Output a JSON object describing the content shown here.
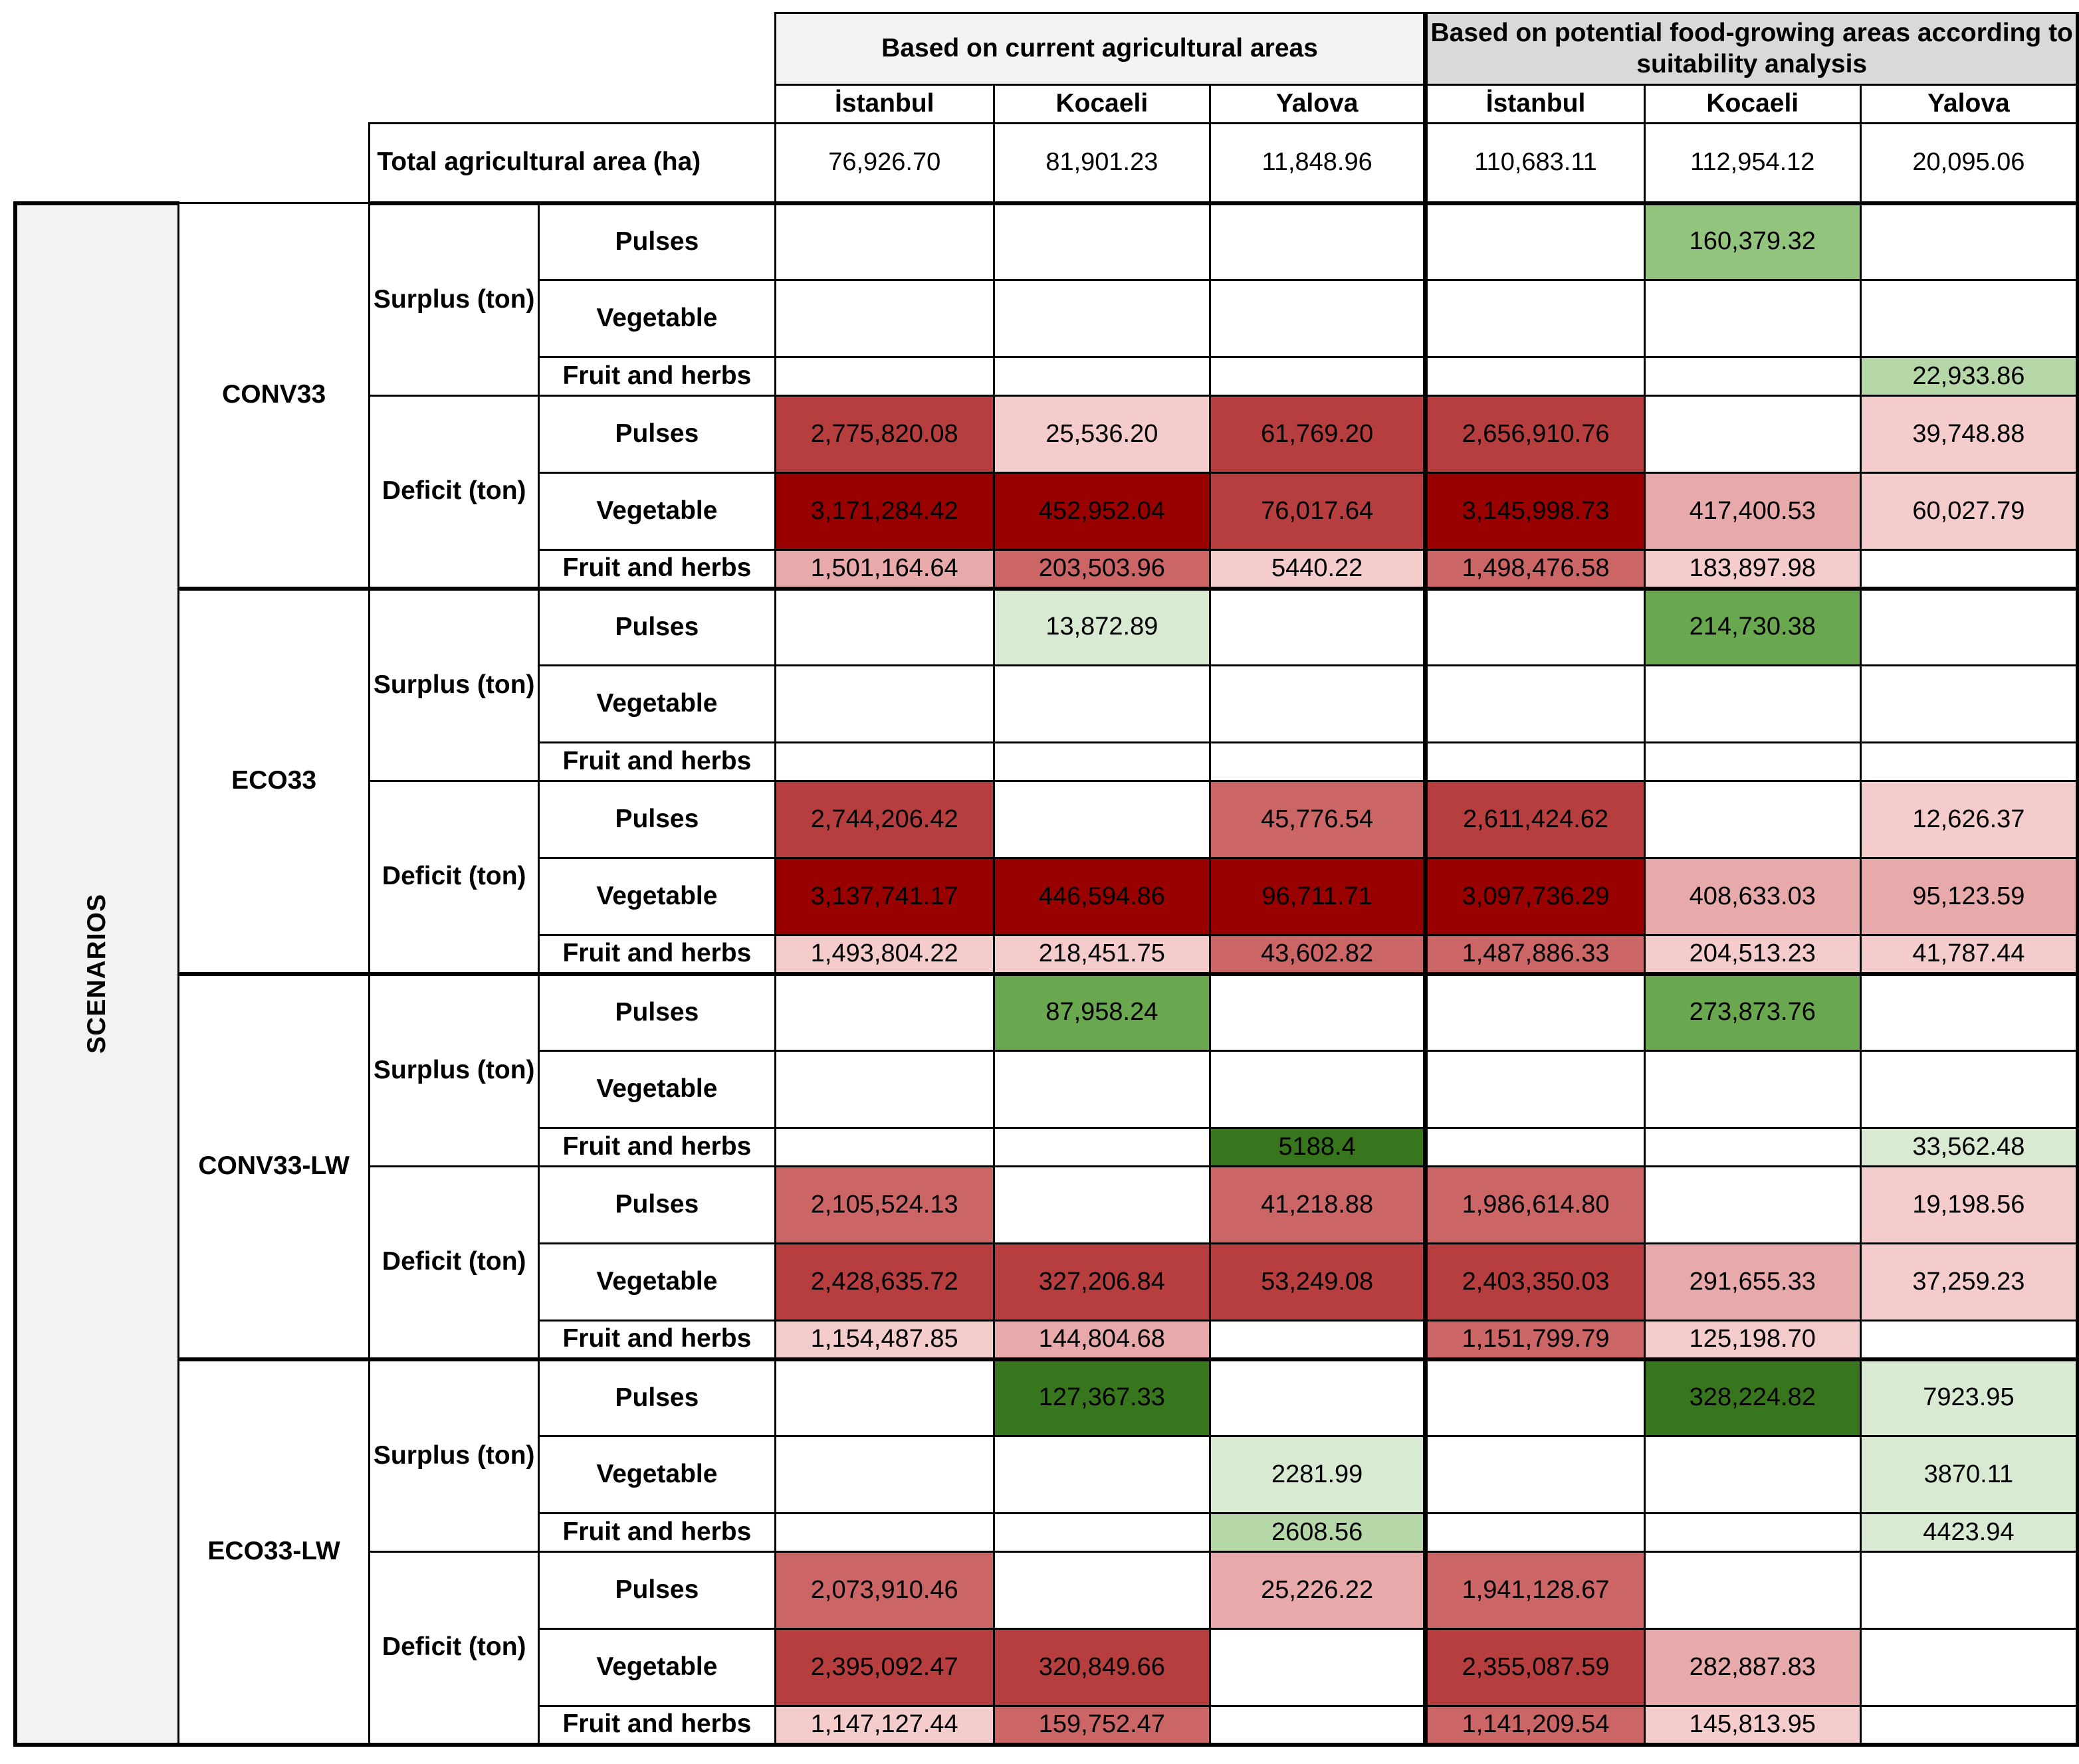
{
  "header": {
    "group_current": "Based on current agricultural areas",
    "group_potential": "Based on potential food-growing areas according to suitability analysis",
    "cities": [
      "İstanbul",
      "Kocaeli",
      "Yalova",
      "İstanbul",
      "Kocaeli",
      "Yalova"
    ]
  },
  "total_row": {
    "label": "Total agricultural area (ha)",
    "values": [
      "76,926.70",
      "81,901.23",
      "11,848.96",
      "110,683.11",
      "112,954.12",
      "20,095.06"
    ]
  },
  "side_label": "SCENARIOS",
  "colors": {
    "deficit_darkest": "#990000",
    "deficit_dark": "#b73e3e",
    "deficit_mid": "#cc6666",
    "deficit_light": "#e7a9a9",
    "deficit_lightest": "#f4cccc",
    "surplus_darkest": "#38761d",
    "surplus_dark": "#6aa84f",
    "surplus_mid": "#93c47d",
    "surplus_light": "#b6d7a8",
    "surplus_lightest": "#d9ead3"
  },
  "scenarios": [
    {
      "name": "CONV33",
      "groups": [
        {
          "label": "Surplus (ton)",
          "rows": [
            {
              "item": "Pulses",
              "values": [
                "",
                "",
                "",
                "",
                "160,379.32",
                ""
              ],
              "shades": [
                "",
                "",
                "",
                "",
                "surplus_mid",
                ""
              ]
            },
            {
              "item": "Vegetable",
              "values": [
                "",
                "",
                "",
                "",
                "",
                ""
              ],
              "shades": [
                "",
                "",
                "",
                "",
                "",
                ""
              ]
            },
            {
              "item": "Fruit and herbs",
              "values": [
                "",
                "",
                "",
                "",
                "",
                "22,933.86"
              ],
              "shades": [
                "",
                "",
                "",
                "",
                "",
                "surplus_light"
              ]
            }
          ]
        },
        {
          "label": "Deficit (ton)",
          "rows": [
            {
              "item": "Pulses",
              "values": [
                "2,775,820.08",
                "25,536.20",
                "61,769.20",
                "2,656,910.76",
                "",
                "39,748.88"
              ],
              "shades": [
                "deficit_dark",
                "deficit_lightest",
                "deficit_dark",
                "deficit_dark",
                "",
                "deficit_lightest"
              ]
            },
            {
              "item": "Vegetable",
              "values": [
                "3,171,284.42",
                "452,952.04",
                "76,017.64",
                "3,145,998.73",
                "417,400.53",
                "60,027.79"
              ],
              "shades": [
                "deficit_darkest",
                "deficit_darkest",
                "deficit_dark",
                "deficit_darkest",
                "deficit_light",
                "deficit_lightest"
              ]
            },
            {
              "item": "Fruit and herbs",
              "values": [
                "1,501,164.64",
                "203,503.96",
                "5440.22",
                "1,498,476.58",
                "183,897.98",
                ""
              ],
              "shades": [
                "deficit_light",
                "deficit_mid",
                "deficit_lightest",
                "deficit_mid",
                "deficit_lightest",
                ""
              ]
            }
          ]
        }
      ]
    },
    {
      "name": "ECO33",
      "groups": [
        {
          "label": "Surplus (ton)",
          "rows": [
            {
              "item": "Pulses",
              "values": [
                "",
                "13,872.89",
                "",
                "",
                "214,730.38",
                ""
              ],
              "shades": [
                "",
                "surplus_lightest",
                "",
                "",
                "surplus_dark",
                ""
              ]
            },
            {
              "item": "Vegetable",
              "values": [
                "",
                "",
                "",
                "",
                "",
                ""
              ],
              "shades": [
                "",
                "",
                "",
                "",
                "",
                ""
              ]
            },
            {
              "item": "Fruit and herbs",
              "values": [
                "",
                "",
                "",
                "",
                "",
                ""
              ],
              "shades": [
                "",
                "",
                "",
                "",
                "",
                ""
              ]
            }
          ]
        },
        {
          "label": "Deficit (ton)",
          "rows": [
            {
              "item": "Pulses",
              "values": [
                "2,744,206.42",
                "",
                "45,776.54",
                "2,611,424.62",
                "",
                "12,626.37"
              ],
              "shades": [
                "deficit_dark",
                "",
                "deficit_mid",
                "deficit_dark",
                "",
                "deficit_lightest"
              ]
            },
            {
              "item": "Vegetable",
              "values": [
                "3,137,741.17",
                "446,594.86",
                "96,711.71",
                "3,097,736.29",
                "408,633.03",
                "95,123.59"
              ],
              "shades": [
                "deficit_darkest",
                "deficit_darkest",
                "deficit_darkest",
                "deficit_darkest",
                "deficit_light",
                "deficit_light"
              ]
            },
            {
              "item": "Fruit and herbs",
              "values": [
                "1,493,804.22",
                "218,451.75",
                "43,602.82",
                "1,487,886.33",
                "204,513.23",
                "41,787.44"
              ],
              "shades": [
                "deficit_lightest",
                "deficit_lightest",
                "deficit_mid",
                "deficit_mid",
                "deficit_lightest",
                "deficit_lightest"
              ]
            }
          ]
        }
      ]
    },
    {
      "name": "CONV33-LW",
      "groups": [
        {
          "label": "Surplus (ton)",
          "rows": [
            {
              "item": "Pulses",
              "values": [
                "",
                "87,958.24",
                "",
                "",
                "273,873.76",
                ""
              ],
              "shades": [
                "",
                "surplus_dark",
                "",
                "",
                "surplus_dark",
                ""
              ]
            },
            {
              "item": "Vegetable",
              "values": [
                "",
                "",
                "",
                "",
                "",
                ""
              ],
              "shades": [
                "",
                "",
                "",
                "",
                "",
                ""
              ]
            },
            {
              "item": "Fruit and herbs",
              "values": [
                "",
                "",
                "5188.4",
                "",
                "",
                "33,562.48"
              ],
              "shades": [
                "",
                "",
                "surplus_darkest",
                "",
                "",
                "surplus_lightest"
              ]
            }
          ]
        },
        {
          "label": "Deficit (ton)",
          "rows": [
            {
              "item": "Pulses",
              "values": [
                "2,105,524.13",
                "",
                "41,218.88",
                "1,986,614.80",
                "",
                "19,198.56"
              ],
              "shades": [
                "deficit_mid",
                "",
                "deficit_mid",
                "deficit_mid",
                "",
                "deficit_lightest"
              ]
            },
            {
              "item": "Vegetable",
              "values": [
                "2,428,635.72",
                "327,206.84",
                "53,249.08",
                "2,403,350.03",
                "291,655.33",
                "37,259.23"
              ],
              "shades": [
                "deficit_dark",
                "deficit_dark",
                "deficit_dark",
                "deficit_dark",
                "deficit_light",
                "deficit_lightest"
              ]
            },
            {
              "item": "Fruit and herbs",
              "values": [
                "1,154,487.85",
                "144,804.68",
                "",
                "1,151,799.79",
                "125,198.70",
                ""
              ],
              "shades": [
                "deficit_lightest",
                "deficit_light",
                "",
                "deficit_mid",
                "deficit_lightest",
                ""
              ]
            }
          ]
        }
      ]
    },
    {
      "name": "ECO33-LW",
      "groups": [
        {
          "label": "Surplus (ton)",
          "rows": [
            {
              "item": "Pulses",
              "values": [
                "",
                "127,367.33",
                "",
                "",
                "328,224.82",
                "7923.95"
              ],
              "shades": [
                "",
                "surplus_darkest",
                "",
                "",
                "surplus_darkest",
                "surplus_lightest"
              ]
            },
            {
              "item": "Vegetable",
              "values": [
                "",
                "",
                "2281.99",
                "",
                "",
                "3870.11"
              ],
              "shades": [
                "",
                "",
                "surplus_lightest",
                "",
                "",
                "surplus_lightest"
              ]
            },
            {
              "item": "Fruit and herbs",
              "values": [
                "",
                "",
                "2608.56",
                "",
                "",
                "4423.94"
              ],
              "shades": [
                "",
                "",
                "surplus_light",
                "",
                "",
                "surplus_lightest"
              ]
            }
          ]
        },
        {
          "label": "Deficit (ton)",
          "rows": [
            {
              "item": "Pulses",
              "values": [
                "2,073,910.46",
                "",
                "25,226.22",
                "1,941,128.67",
                "",
                ""
              ],
              "shades": [
                "deficit_mid",
                "",
                "deficit_light",
                "deficit_mid",
                "",
                ""
              ]
            },
            {
              "item": "Vegetable",
              "values": [
                "2,395,092.47",
                "320,849.66",
                "",
                "2,355,087.59",
                "282,887.83",
                ""
              ],
              "shades": [
                "deficit_dark",
                "deficit_dark",
                "",
                "deficit_dark",
                "deficit_light",
                ""
              ]
            },
            {
              "item": "Fruit and herbs",
              "values": [
                "1,147,127.44",
                "159,752.47",
                "",
                "1,141,209.54",
                "145,813.95",
                ""
              ],
              "shades": [
                "deficit_lightest",
                "deficit_mid",
                "",
                "deficit_mid",
                "deficit_lightest",
                ""
              ]
            }
          ]
        }
      ]
    }
  ]
}
